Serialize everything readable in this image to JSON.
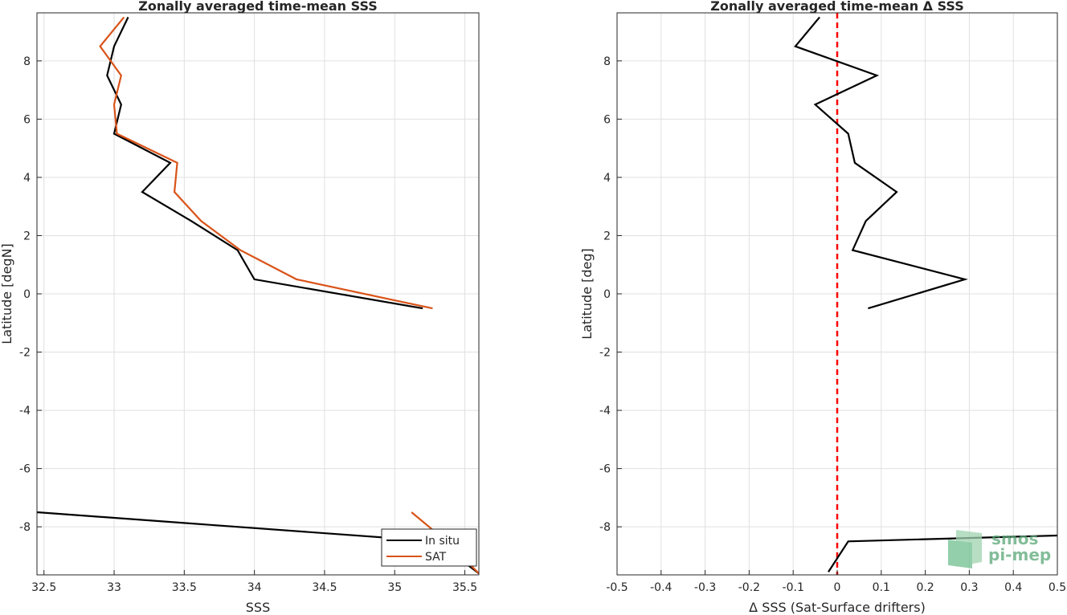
{
  "chart_data": [
    {
      "type": "line",
      "title": "Zonally averaged time-mean SSS",
      "xlabel": "SSS",
      "ylabel": "Latitude [degN]",
      "xlim": [
        32.45,
        35.6
      ],
      "ylim": [
        -9.65,
        9.65
      ],
      "xticks": [
        32.5,
        33,
        33.5,
        34,
        34.5,
        35,
        35.5
      ],
      "yticks": [
        -8,
        -6,
        -4,
        -2,
        0,
        2,
        4,
        6,
        8
      ],
      "grid": true,
      "legend_position": "bottom-right",
      "series": [
        {
          "name": "In situ",
          "color": "#000000",
          "points": [
            [
              33.1,
              9.5
            ],
            [
              33.0,
              8.5
            ],
            [
              32.95,
              7.5
            ],
            [
              33.05,
              6.5
            ],
            [
              33.0,
              5.5
            ],
            [
              33.4,
              4.5
            ],
            [
              33.2,
              3.5
            ],
            [
              33.55,
              2.5
            ],
            [
              33.88,
              1.5
            ],
            [
              34.0,
              0.5
            ],
            [
              35.2,
              -0.5
            ],
            null,
            [
              32.45,
              -7.5
            ],
            [
              35.3,
              -8.5
            ],
            [
              35.6,
              -9.6
            ]
          ]
        },
        {
          "name": "SAT",
          "color": "#d95319",
          "points": [
            [
              33.07,
              9.5
            ],
            [
              32.9,
              8.5
            ],
            [
              33.05,
              7.5
            ],
            [
              33.0,
              6.5
            ],
            [
              33.02,
              5.5
            ],
            [
              33.45,
              4.5
            ],
            [
              33.43,
              3.5
            ],
            [
              33.62,
              2.5
            ],
            [
              33.9,
              1.5
            ],
            [
              34.3,
              0.5
            ],
            [
              35.27,
              -0.5
            ],
            null,
            [
              35.12,
              -7.5
            ],
            [
              35.37,
              -8.5
            ],
            [
              35.6,
              -9.6
            ]
          ]
        }
      ]
    },
    {
      "type": "line",
      "title": "Zonally averaged time-mean Δ SSS",
      "xlabel": "Δ SSS (Sat-Surface drifters)",
      "ylabel": "Latitude [deg]",
      "xlim": [
        -0.5,
        0.5
      ],
      "ylim": [
        -9.65,
        9.65
      ],
      "xticks": [
        -0.5,
        -0.4,
        -0.3,
        -0.2,
        -0.1,
        0,
        0.1,
        0.2,
        0.3,
        0.4,
        0.5
      ],
      "xticklabels": [
        "-0.5",
        "-0.4",
        "-0.3",
        "-0.2",
        "-0.1",
        "0",
        "0.1",
        "0.2",
        "0.3",
        "0.4",
        "0.5"
      ],
      "yticks": [
        -8,
        -6,
        -4,
        -2,
        0,
        2,
        4,
        6,
        8
      ],
      "grid": true,
      "reference_line": {
        "x": 0,
        "color": "#ff0000",
        "style": "dashed"
      },
      "series": [
        {
          "color": "#000000",
          "points": [
            [
              -0.04,
              9.5
            ],
            [
              -0.095,
              8.5
            ],
            [
              0.09,
              7.5
            ],
            [
              -0.05,
              6.5
            ],
            [
              0.025,
              5.5
            ],
            [
              0.04,
              4.5
            ],
            [
              0.135,
              3.5
            ],
            [
              0.065,
              2.5
            ],
            [
              0.035,
              1.5
            ],
            [
              0.29,
              0.5
            ],
            [
              0.07,
              -0.5
            ],
            null,
            [
              0.5,
              -8.3
            ],
            [
              0.025,
              -8.5
            ],
            [
              -0.02,
              -9.55
            ]
          ]
        }
      ]
    }
  ],
  "watermark": {
    "line1": "smos",
    "line2": "pi-mep",
    "color": "#5aa878"
  }
}
